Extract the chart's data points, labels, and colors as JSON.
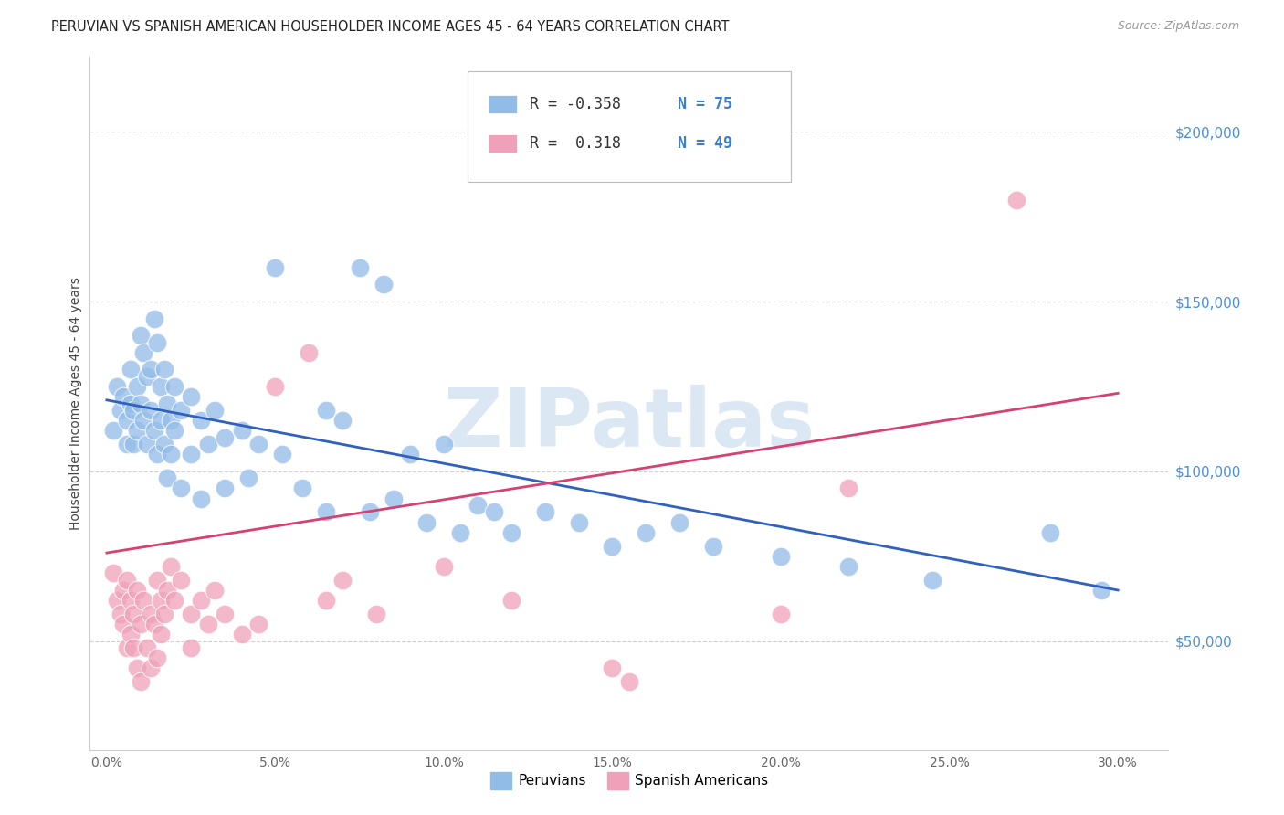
{
  "title": "PERUVIAN VS SPANISH AMERICAN HOUSEHOLDER INCOME AGES 45 - 64 YEARS CORRELATION CHART",
  "source": "Source: ZipAtlas.com",
  "ylabel": "Householder Income Ages 45 - 64 years",
  "xlabel_ticks": [
    "0.0%",
    "5.0%",
    "10.0%",
    "15.0%",
    "20.0%",
    "25.0%",
    "30.0%"
  ],
  "xlabel_vals": [
    0.0,
    0.05,
    0.1,
    0.15,
    0.2,
    0.25,
    0.3
  ],
  "ylabel_ticks": [
    "$50,000",
    "$100,000",
    "$150,000",
    "$200,000"
  ],
  "ylabel_vals": [
    50000,
    100000,
    150000,
    200000
  ],
  "xlim": [
    -0.005,
    0.315
  ],
  "ylim": [
    18000,
    222000
  ],
  "blue_R": "-0.358",
  "blue_N": "75",
  "pink_R": "0.318",
  "pink_N": "49",
  "blue_color": "#92bce8",
  "pink_color": "#f0a0b8",
  "blue_line_color": "#3060c0",
  "pink_line_color": "#d84070",
  "watermark_text": "ZIPatlas",
  "watermark_color": "#c5d8ee",
  "background_color": "#ffffff",
  "grid_color": "#d0d0d0",
  "blue_line_x0": 0.0,
  "blue_line_x1": 0.3,
  "blue_line_y0": 121000,
  "blue_line_y1": 65000,
  "pink_line_x0": 0.0,
  "pink_line_x1": 0.3,
  "pink_line_y0": 76000,
  "pink_line_y1": 123000,
  "blue_scatter": [
    [
      0.002,
      112000
    ],
    [
      0.003,
      125000
    ],
    [
      0.004,
      118000
    ],
    [
      0.005,
      122000
    ],
    [
      0.006,
      108000
    ],
    [
      0.006,
      115000
    ],
    [
      0.007,
      120000
    ],
    [
      0.007,
      130000
    ],
    [
      0.008,
      118000
    ],
    [
      0.008,
      108000
    ],
    [
      0.009,
      125000
    ],
    [
      0.009,
      112000
    ],
    [
      0.01,
      140000
    ],
    [
      0.01,
      120000
    ],
    [
      0.011,
      135000
    ],
    [
      0.011,
      115000
    ],
    [
      0.012,
      128000
    ],
    [
      0.012,
      108000
    ],
    [
      0.013,
      130000
    ],
    [
      0.013,
      118000
    ],
    [
      0.014,
      145000
    ],
    [
      0.014,
      112000
    ],
    [
      0.015,
      138000
    ],
    [
      0.015,
      105000
    ],
    [
      0.016,
      125000
    ],
    [
      0.016,
      115000
    ],
    [
      0.017,
      130000
    ],
    [
      0.017,
      108000
    ],
    [
      0.018,
      120000
    ],
    [
      0.018,
      98000
    ],
    [
      0.019,
      115000
    ],
    [
      0.019,
      105000
    ],
    [
      0.02,
      125000
    ],
    [
      0.02,
      112000
    ],
    [
      0.022,
      118000
    ],
    [
      0.022,
      95000
    ],
    [
      0.025,
      122000
    ],
    [
      0.025,
      105000
    ],
    [
      0.028,
      115000
    ],
    [
      0.028,
      92000
    ],
    [
      0.03,
      108000
    ],
    [
      0.032,
      118000
    ],
    [
      0.035,
      110000
    ],
    [
      0.035,
      95000
    ],
    [
      0.04,
      112000
    ],
    [
      0.042,
      98000
    ],
    [
      0.045,
      108000
    ],
    [
      0.05,
      160000
    ],
    [
      0.052,
      105000
    ],
    [
      0.058,
      95000
    ],
    [
      0.065,
      118000
    ],
    [
      0.065,
      88000
    ],
    [
      0.07,
      115000
    ],
    [
      0.075,
      160000
    ],
    [
      0.078,
      88000
    ],
    [
      0.082,
      155000
    ],
    [
      0.085,
      92000
    ],
    [
      0.09,
      105000
    ],
    [
      0.095,
      85000
    ],
    [
      0.1,
      108000
    ],
    [
      0.105,
      82000
    ],
    [
      0.11,
      90000
    ],
    [
      0.115,
      88000
    ],
    [
      0.12,
      82000
    ],
    [
      0.13,
      88000
    ],
    [
      0.14,
      85000
    ],
    [
      0.15,
      78000
    ],
    [
      0.16,
      82000
    ],
    [
      0.17,
      85000
    ],
    [
      0.18,
      78000
    ],
    [
      0.2,
      75000
    ],
    [
      0.22,
      72000
    ],
    [
      0.245,
      68000
    ],
    [
      0.28,
      82000
    ],
    [
      0.295,
      65000
    ]
  ],
  "pink_scatter": [
    [
      0.002,
      70000
    ],
    [
      0.003,
      62000
    ],
    [
      0.004,
      58000
    ],
    [
      0.005,
      65000
    ],
    [
      0.005,
      55000
    ],
    [
      0.006,
      68000
    ],
    [
      0.006,
      48000
    ],
    [
      0.007,
      62000
    ],
    [
      0.007,
      52000
    ],
    [
      0.008,
      58000
    ],
    [
      0.008,
      48000
    ],
    [
      0.009,
      65000
    ],
    [
      0.009,
      42000
    ],
    [
      0.01,
      55000
    ],
    [
      0.01,
      38000
    ],
    [
      0.011,
      62000
    ],
    [
      0.012,
      48000
    ],
    [
      0.013,
      58000
    ],
    [
      0.013,
      42000
    ],
    [
      0.014,
      55000
    ],
    [
      0.015,
      68000
    ],
    [
      0.015,
      45000
    ],
    [
      0.016,
      62000
    ],
    [
      0.016,
      52000
    ],
    [
      0.017,
      58000
    ],
    [
      0.018,
      65000
    ],
    [
      0.019,
      72000
    ],
    [
      0.02,
      62000
    ],
    [
      0.022,
      68000
    ],
    [
      0.025,
      58000
    ],
    [
      0.025,
      48000
    ],
    [
      0.028,
      62000
    ],
    [
      0.03,
      55000
    ],
    [
      0.032,
      65000
    ],
    [
      0.035,
      58000
    ],
    [
      0.04,
      52000
    ],
    [
      0.045,
      55000
    ],
    [
      0.05,
      125000
    ],
    [
      0.06,
      135000
    ],
    [
      0.065,
      62000
    ],
    [
      0.07,
      68000
    ],
    [
      0.08,
      58000
    ],
    [
      0.1,
      72000
    ],
    [
      0.12,
      62000
    ],
    [
      0.15,
      42000
    ],
    [
      0.155,
      38000
    ],
    [
      0.2,
      58000
    ],
    [
      0.22,
      95000
    ],
    [
      0.27,
      180000
    ]
  ]
}
